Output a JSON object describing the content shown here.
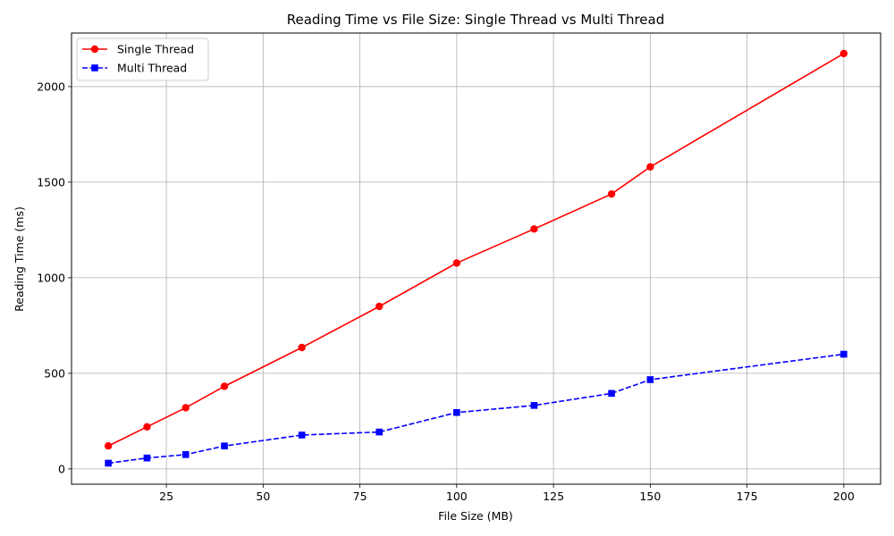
{
  "chart_data": {
    "type": "line",
    "title": "Reading Time vs File Size: Single Thread vs Multi Thread",
    "xlabel": "File Size (MB)",
    "ylabel": "Reading Time (ms)",
    "xlim": [
      0.5,
      209.5
    ],
    "ylim": [
      -80,
      2280
    ],
    "xticks": [
      25,
      50,
      75,
      100,
      125,
      150,
      175,
      200
    ],
    "yticks": [
      0,
      500,
      1000,
      1500,
      2000
    ],
    "grid": true,
    "legend_position": "top-left",
    "x": [
      10,
      20,
      30,
      40,
      60,
      80,
      100,
      120,
      140,
      150,
      200
    ],
    "series": [
      {
        "name": "Single Thread",
        "color": "#ff0000",
        "line_style": "solid",
        "marker": "circle",
        "values": [
          120,
          220,
          320,
          432,
          635,
          850,
          1077,
          1255,
          1438,
          1580,
          2173
        ]
      },
      {
        "name": "Multi Thread",
        "color": "#0000ff",
        "line_style": "dashed",
        "marker": "square",
        "values": [
          30,
          57,
          75,
          120,
          177,
          193,
          295,
          332,
          395,
          467,
          600
        ]
      }
    ]
  }
}
